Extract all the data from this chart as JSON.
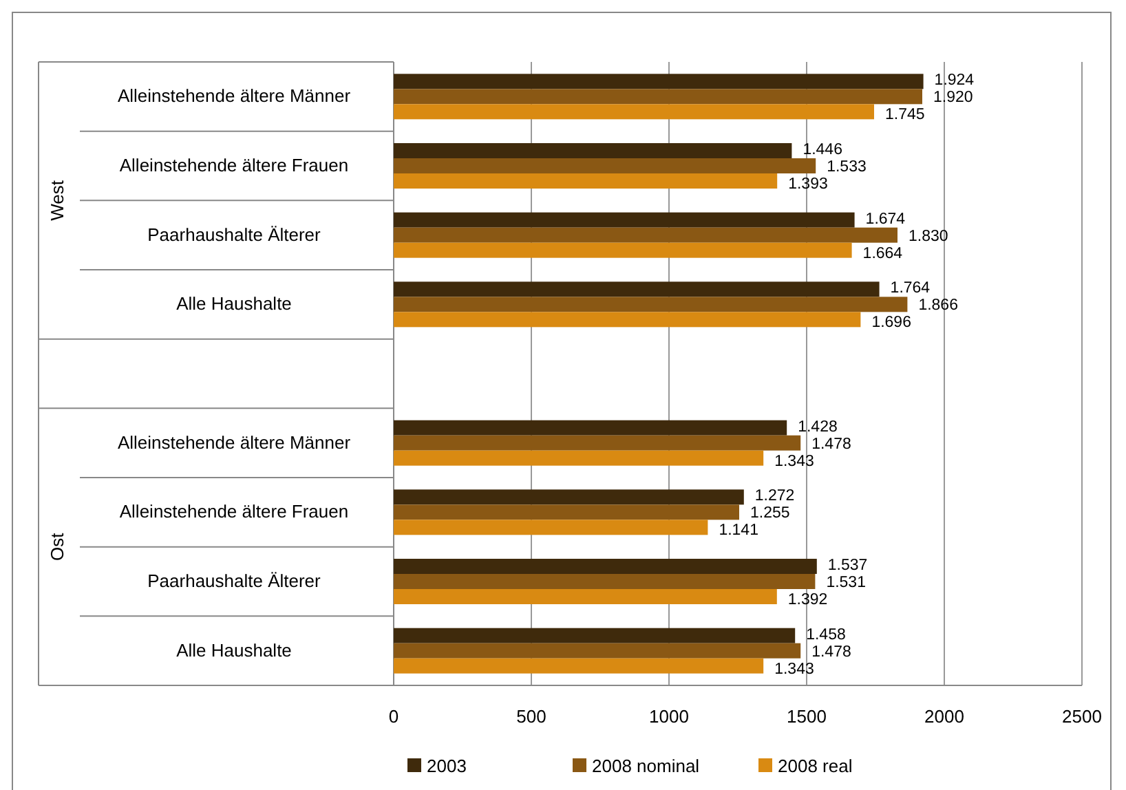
{
  "chart_data": {
    "type": "bar",
    "orientation": "horizontal",
    "categories": [
      "Alleinstehende  ältere Männer",
      "Alleinstehende  ältere Frauen",
      "Paarhaushalte Älterer",
      "Alle Haushalte",
      null,
      "Alleinstehende  ältere Männer",
      "Alleinstehende  ältere Frauen",
      "Paarhaushalte Älterer",
      "Alle Haushalte"
    ],
    "series": [
      {
        "name": "2003",
        "color": "#3f2a0c",
        "values": [
          1924,
          1446,
          1674,
          1764,
          null,
          1428,
          1272,
          1537,
          1458
        ],
        "value_labels": [
          "1.924",
          "1.446",
          "1.674",
          "1.764",
          null,
          "1.428",
          "1.272",
          "1.537",
          "1.458"
        ]
      },
      {
        "name": "2008 nominal",
        "color": "#8a5814",
        "values": [
          1920,
          1533,
          1830,
          1866,
          null,
          1478,
          1255,
          1531,
          1478
        ],
        "value_labels": [
          "1.920",
          "1.533",
          "1.830",
          "1.866",
          null,
          "1.478",
          "1.255",
          "1.531",
          "1.478"
        ]
      },
      {
        "name": "2008 real",
        "color": "#d98a12",
        "values": [
          1745,
          1393,
          1664,
          1696,
          null,
          1343,
          1141,
          1392,
          1343
        ],
        "value_labels": [
          "1.745",
          "1.393",
          "1.664",
          "1.696",
          null,
          "1.343",
          "1.141",
          "1.392",
          "1.343"
        ]
      }
    ],
    "annotations": [
      "West",
      "Ost"
    ],
    "xlim": [
      0,
      2500
    ],
    "xticks": [
      0,
      500,
      1000,
      1500,
      2000,
      2500
    ],
    "grid": "x",
    "legend": "bottom"
  }
}
